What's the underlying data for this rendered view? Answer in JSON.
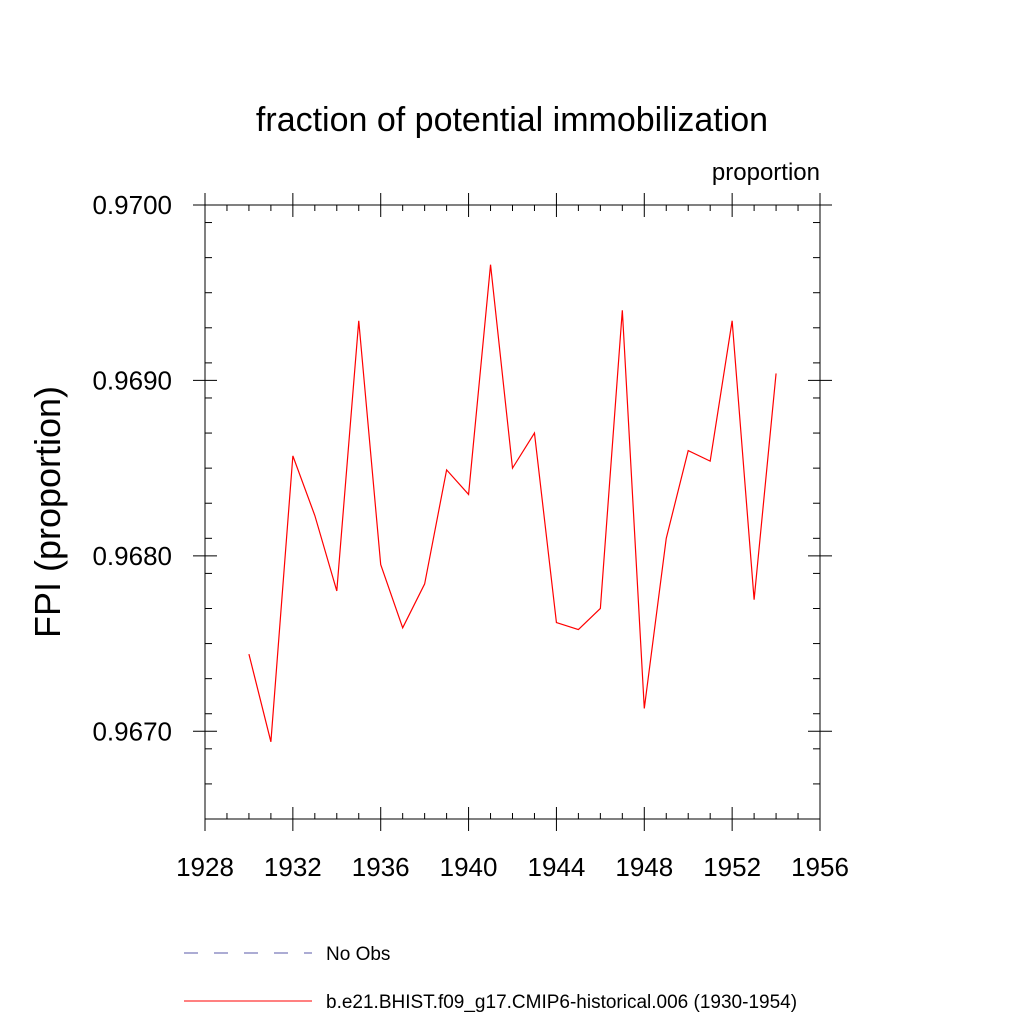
{
  "chart_data": {
    "type": "line",
    "title": "fraction of potential immobilization",
    "subtitle": "proportion",
    "xlabel": "",
    "ylabel": "FPI  (proportion)",
    "xlim": [
      1928,
      1956
    ],
    "ylim": [
      0.9665,
      0.97
    ],
    "x_ticks": [
      1928,
      1932,
      1936,
      1940,
      1944,
      1948,
      1952,
      1956
    ],
    "x_tick_labels": [
      "1928",
      "1932",
      "1936",
      "1940",
      "1944",
      "1948",
      "1952",
      "1956"
    ],
    "y_ticks": [
      0.967,
      0.968,
      0.969,
      0.97
    ],
    "y_tick_labels": [
      "0.9670",
      "0.9680",
      "0.9690",
      "0.9700"
    ],
    "grid": false,
    "legend_position": "bottom",
    "series": [
      {
        "name": "b.e21.BHIST.f09_g17.CMIP6-historical.006 (1930-1954)",
        "color": "#ff0000",
        "style": "solid",
        "x": [
          1930,
          1931,
          1932,
          1933,
          1934,
          1935,
          1936,
          1937,
          1938,
          1939,
          1940,
          1941,
          1942,
          1943,
          1944,
          1945,
          1946,
          1947,
          1948,
          1949,
          1950,
          1951,
          1952,
          1953,
          1954
        ],
        "y": [
          0.96744,
          0.96694,
          0.96857,
          0.96823,
          0.9678,
          0.96934,
          0.96795,
          0.96759,
          0.96784,
          0.96849,
          0.96835,
          0.96966,
          0.9685,
          0.9687,
          0.96762,
          0.96758,
          0.9677,
          0.9694,
          0.96713,
          0.9681,
          0.9686,
          0.96854,
          0.96934,
          0.96775,
          0.96904
        ]
      },
      {
        "name": "No Obs",
        "color": "#5a5aaa",
        "style": "dashed",
        "x": [],
        "y": []
      }
    ]
  }
}
